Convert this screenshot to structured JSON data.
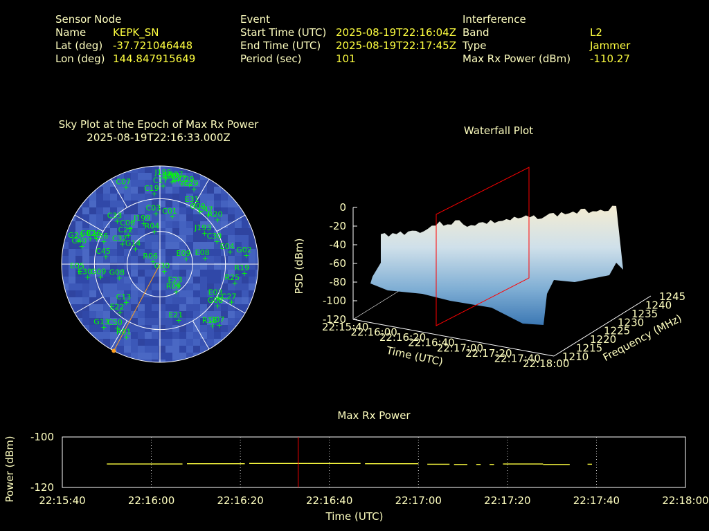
{
  "header": {
    "sensor": {
      "heading": "Sensor Node",
      "name_label": "Name",
      "name_value": "KEPK_SN",
      "lat_label": "Lat (deg)",
      "lat_value": "-37.721046448",
      "lon_label": "Lon (deg)",
      "lon_value": "144.847915649"
    },
    "event": {
      "heading": "Event",
      "start_label": "Start Time (UTC)",
      "start_value": "2025-08-19T22:16:04Z",
      "end_label": "End Time (UTC)",
      "end_value": "2025-08-19T22:17:45Z",
      "period_label": "Period (sec)",
      "period_value": "101"
    },
    "interference": {
      "heading": "Interference",
      "band_label": "Band",
      "band_value": "L2",
      "type_label": "Type",
      "type_value": "Jammer",
      "power_label": "Max Rx Power (dBm)",
      "power_value": "-110.27"
    }
  },
  "colors": {
    "label": "#ffffc0",
    "value": "#ffff40",
    "satellite": "#00ff00",
    "sky_fill": "#3a50b0",
    "marker_line": "#ff0000",
    "jammer_dir": "#ffa020"
  },
  "sky_plot": {
    "title_line1": "Sky Plot at the Epoch of Max Rx Power",
    "title_line2": "2025-08-19T22:16:33.000Z",
    "jammer_azimuth_deg": 208,
    "satellites": [
      {
        "id": "J195",
        "az": 3,
        "el": 88
      },
      {
        "id": "E10",
        "az": 10,
        "el": 86
      },
      {
        "id": "R07",
        "az": 12,
        "el": 88
      },
      {
        "id": "E27",
        "az": 15,
        "el": 85
      },
      {
        "id": "C07",
        "az": 336,
        "el": 86
      },
      {
        "id": "C29",
        "az": 20,
        "el": 86
      },
      {
        "id": "E29",
        "az": 24,
        "el": 84
      },
      {
        "id": "R05",
        "az": 8,
        "el": 85
      },
      {
        "id": "C17",
        "az": 2,
        "el": 80
      },
      {
        "id": "C19",
        "az": 355,
        "el": 72
      },
      {
        "id": "E31",
        "az": 30,
        "el": 70
      },
      {
        "id": "G09",
        "az": 37,
        "el": 67
      },
      {
        "id": "C47",
        "az": 44,
        "el": 70
      },
      {
        "id": "R20",
        "az": 52,
        "el": 74
      },
      {
        "id": "C33",
        "az": 315,
        "el": 62
      },
      {
        "id": "C03",
        "az": 355,
        "el": 52
      },
      {
        "id": "C01",
        "az": 14,
        "el": 50
      },
      {
        "id": "J199",
        "az": 338,
        "el": 45
      },
      {
        "id": "R04",
        "az": 350,
        "el": 34
      },
      {
        "id": "C06",
        "az": 320,
        "el": 48
      },
      {
        "id": "C22",
        "az": 312,
        "el": 44
      },
      {
        "id": "J193",
        "az": 55,
        "el": 55
      },
      {
        "id": "C30",
        "az": 68,
        "el": 62
      },
      {
        "id": "E26",
        "az": 292,
        "el": 70
      },
      {
        "id": "G02",
        "az": 290,
        "el": 76
      },
      {
        "id": "C40",
        "az": 283,
        "el": 82
      },
      {
        "id": "G24",
        "az": 286,
        "el": 87
      },
      {
        "id": "E36",
        "az": 292,
        "el": 62
      },
      {
        "id": "C32",
        "az": 298,
        "el": 44
      },
      {
        "id": "G14",
        "az": 302,
        "el": 30
      },
      {
        "id": "E04",
        "az": 80,
        "el": 72
      },
      {
        "id": "G02b",
        "az": 84,
        "el": 88
      },
      {
        "id": "E08",
        "az": 82,
        "el": 46
      },
      {
        "id": "E09",
        "az": 78,
        "el": 27
      },
      {
        "id": "R19",
        "az": 96,
        "el": 86
      },
      {
        "id": "R25",
        "az": 104,
        "el": 78
      },
      {
        "id": "C45",
        "az": 278,
        "el": 56
      },
      {
        "id": "R06",
        "az": 290,
        "el": 8
      },
      {
        "id": "E05",
        "az": 265,
        "el": 82
      },
      {
        "id": "E30",
        "az": 260,
        "el": 75
      },
      {
        "id": "G09b",
        "az": 258,
        "el": 62
      },
      {
        "id": "G08",
        "az": 252,
        "el": 44
      },
      {
        "id": "G30",
        "az": 150,
        "el": 8
      },
      {
        "id": "E23",
        "az": 140,
        "el": 28
      },
      {
        "id": "E03",
        "az": 120,
        "el": 68
      },
      {
        "id": "G08b",
        "az": 126,
        "el": 72
      },
      {
        "id": "C27",
        "az": 118,
        "el": 82
      },
      {
        "id": "R09",
        "az": 150,
        "el": 32
      },
      {
        "id": "E21",
        "az": 162,
        "el": 60
      },
      {
        "id": "R18",
        "az": 140,
        "el": 82
      },
      {
        "id": "G07",
        "az": 136,
        "el": 86
      },
      {
        "id": "C13",
        "az": 222,
        "el": 52
      },
      {
        "id": "E22",
        "az": 220,
        "el": 64
      },
      {
        "id": "C50",
        "az": 214,
        "el": 78
      },
      {
        "id": "G13",
        "az": 222,
        "el": 86
      },
      {
        "id": "R01",
        "az": 205,
        "el": 82
      }
    ]
  },
  "waterfall": {
    "title": "Waterfall Plot",
    "zlabel": "PSD (dBm)",
    "xlabel": "Time (UTC)",
    "ylabel": "Frequency (MHz)",
    "z_ticks": [
      "0",
      "-20",
      "-40",
      "-60",
      "-80",
      "-100",
      "-120"
    ],
    "time_ticks": [
      "22:15:40",
      "22:16:00",
      "22:16:20",
      "22:16:40",
      "22:17:00",
      "22:17:20",
      "22:17:40",
      "22:18:00"
    ],
    "freq_ticks": [
      "1210",
      "1215",
      "1220",
      "1225",
      "1230",
      "1235",
      "1240",
      "1245"
    ],
    "marker_time": "22:16:33"
  },
  "chart_data": [
    {
      "type": "line",
      "title": "Max Rx Power",
      "xlabel": "Time (UTC)",
      "ylabel": "Power (dBm)",
      "xlim": [
        "22:15:40",
        "22:18:00"
      ],
      "ylim": [
        -120,
        -100
      ],
      "x_ticks": [
        "22:15:40",
        "22:16:00",
        "22:16:20",
        "22:16:40",
        "22:17:00",
        "22:17:20",
        "22:17:40",
        "22:18:00"
      ],
      "y_ticks": [
        "-100",
        "-120"
      ],
      "marker_time": "22:16:33",
      "segments": [
        {
          "start": "22:15:50",
          "end": "22:16:07",
          "value": -110.7
        },
        {
          "start": "22:16:08",
          "end": "22:16:21",
          "value": -110.6
        },
        {
          "start": "22:16:22",
          "end": "22:16:35",
          "value": -110.5
        },
        {
          "start": "22:16:35",
          "end": "22:16:47",
          "value": -110.5
        },
        {
          "start": "22:16:48",
          "end": "22:17:00",
          "value": -110.6
        },
        {
          "start": "22:17:02",
          "end": "22:17:07",
          "value": -110.8
        },
        {
          "start": "22:17:08",
          "end": "22:17:11",
          "value": -110.9
        },
        {
          "start": "22:17:13",
          "end": "22:17:14",
          "value": -110.9
        },
        {
          "start": "22:17:16",
          "end": "22:17:17",
          "value": -110.9
        },
        {
          "start": "22:17:19",
          "end": "22:17:28",
          "value": -110.7
        },
        {
          "start": "22:17:28",
          "end": "22:17:34",
          "value": -110.9
        },
        {
          "start": "22:17:38",
          "end": "22:17:39",
          "value": -110.8
        }
      ]
    }
  ]
}
